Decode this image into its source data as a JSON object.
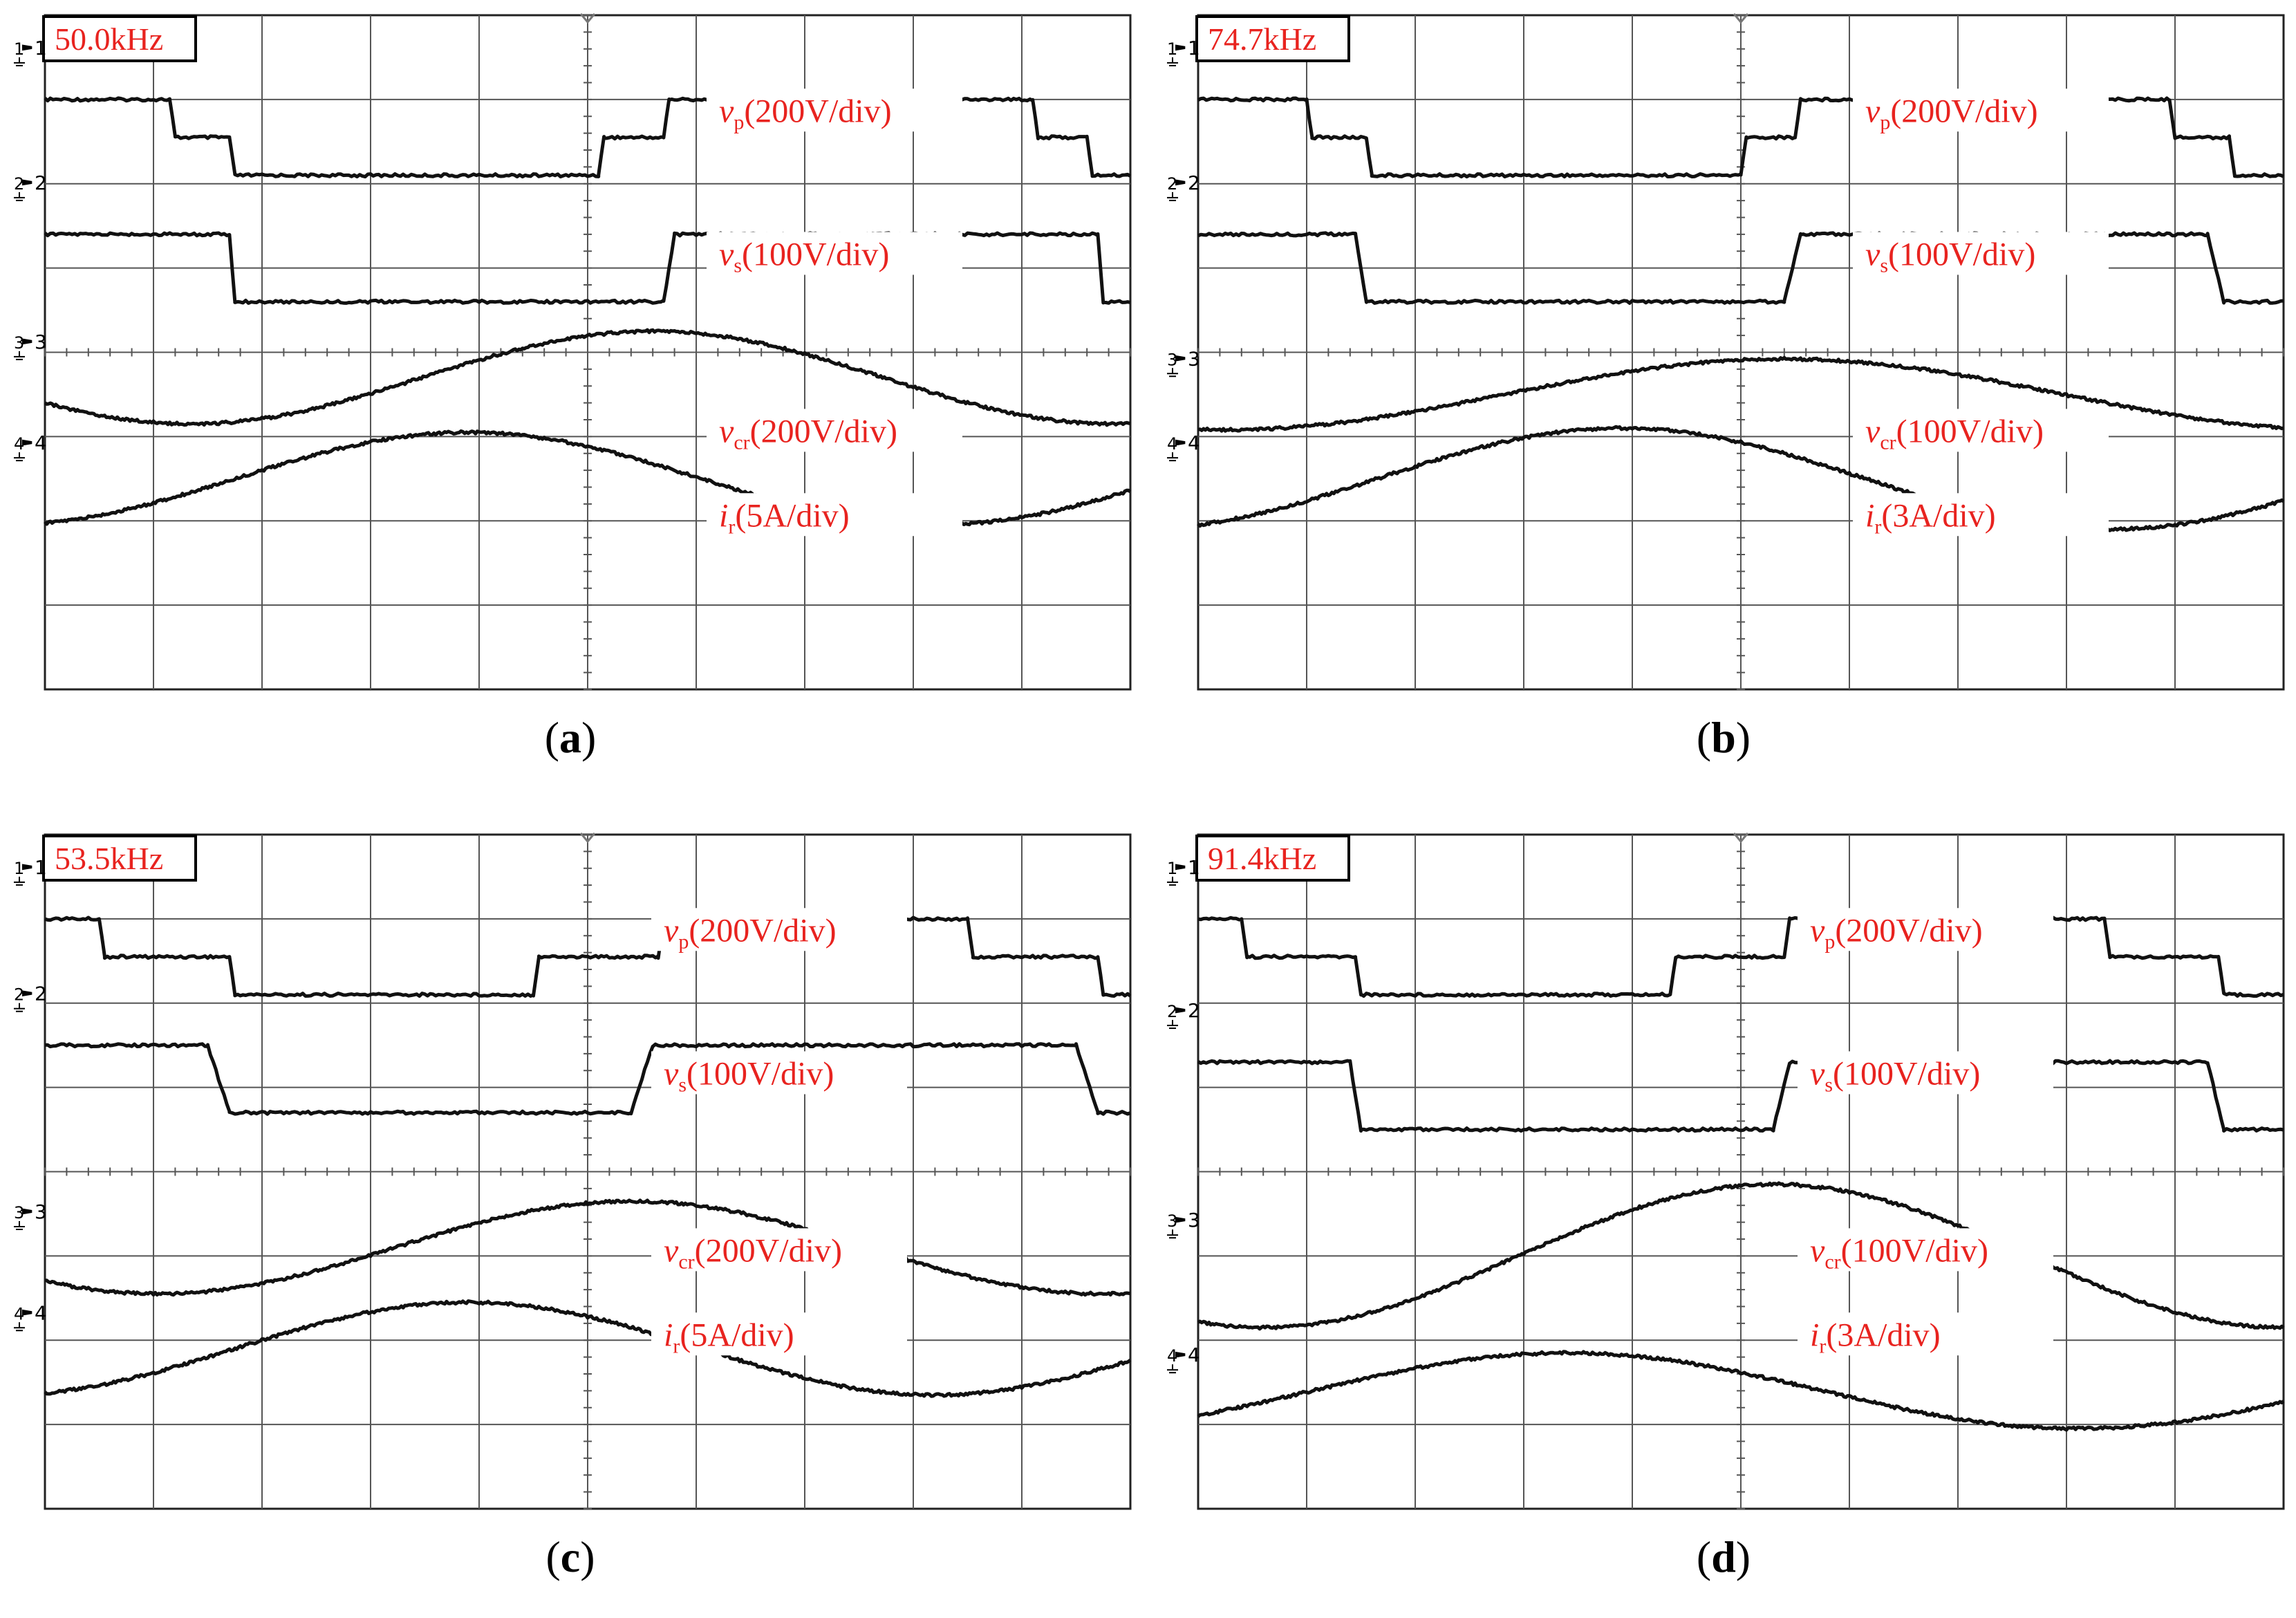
{
  "chart_data": [
    {
      "type": "line",
      "panel": "a",
      "frequency": "50.0kHz",
      "caption": {
        "open": "(",
        "letter": "a",
        "close": ")"
      },
      "grid": {
        "h_divs": 10,
        "v_divs": 8
      },
      "channels": [
        {
          "marker": "1",
          "label_var": "v",
          "label_sub": "p",
          "label_rest": "(200V/div)",
          "levels": [
            {
              "t": 0,
              "y": 1.0
            },
            {
              "t": 1.15,
              "y": 1.0
            },
            {
              "t": 1.2,
              "y": 1.45
            },
            {
              "t": 1.7,
              "y": 1.45
            },
            {
              "t": 1.75,
              "y": 1.9
            },
            {
              "t": 5.1,
              "y": 1.9
            },
            {
              "t": 5.15,
              "y": 1.45
            },
            {
              "t": 5.7,
              "y": 1.45
            },
            {
              "t": 5.75,
              "y": 1.0
            },
            {
              "t": 9.1,
              "y": 1.0
            },
            {
              "t": 9.15,
              "y": 1.45
            },
            {
              "t": 9.6,
              "y": 1.45
            },
            {
              "t": 9.65,
              "y": 1.9
            },
            {
              "t": 10,
              "y": 1.9
            }
          ]
        },
        {
          "marker": "2",
          "label_var": "v",
          "label_sub": "s",
          "label_rest": "(100V/div)",
          "levels": [
            {
              "t": 0,
              "y": 2.6
            },
            {
              "t": 1.7,
              "y": 2.6
            },
            {
              "t": 1.75,
              "y": 3.4
            },
            {
              "t": 5.7,
              "y": 3.4
            },
            {
              "t": 5.8,
              "y": 2.6
            },
            {
              "t": 9.7,
              "y": 2.6
            },
            {
              "t": 9.75,
              "y": 3.4
            },
            {
              "t": 10,
              "y": 3.4
            }
          ]
        },
        {
          "marker": "3",
          "label_var": "v",
          "label_sub": "cr",
          "label_rest": "(200V/div)",
          "sine": {
            "offset": 4.3,
            "amp": 0.55,
            "period": 8.5,
            "phase_peak": 5.6
          }
        },
        {
          "marker": "4",
          "label_var": "i",
          "label_sub": "r",
          "label_rest": "(5A/div)",
          "sine": {
            "offset": 5.5,
            "amp": 0.55,
            "period": 8.6,
            "phase_peak": 3.9
          }
        }
      ]
    },
    {
      "type": "line",
      "panel": "b",
      "frequency": "74.7kHz",
      "caption": {
        "open": "(",
        "letter": "b",
        "close": ")"
      },
      "grid": {
        "h_divs": 10,
        "v_divs": 8
      },
      "channels": [
        {
          "marker": "1",
          "label_var": "v",
          "label_sub": "p",
          "label_rest": "(200V/div)",
          "levels": [
            {
              "t": 0,
              "y": 1.0
            },
            {
              "t": 1.0,
              "y": 1.0
            },
            {
              "t": 1.05,
              "y": 1.45
            },
            {
              "t": 1.55,
              "y": 1.45
            },
            {
              "t": 1.6,
              "y": 1.9
            },
            {
              "t": 5.0,
              "y": 1.9
            },
            {
              "t": 5.05,
              "y": 1.45
            },
            {
              "t": 5.5,
              "y": 1.45
            },
            {
              "t": 5.55,
              "y": 1.0
            },
            {
              "t": 8.95,
              "y": 1.0
            },
            {
              "t": 9.0,
              "y": 1.45
            },
            {
              "t": 9.5,
              "y": 1.45
            },
            {
              "t": 9.55,
              "y": 1.9
            },
            {
              "t": 10,
              "y": 1.9
            }
          ]
        },
        {
          "marker": "2",
          "label_var": "v",
          "label_sub": "s",
          "label_rest": "(100V/div)",
          "levels": [
            {
              "t": 0,
              "y": 2.6
            },
            {
              "t": 1.45,
              "y": 2.6
            },
            {
              "t": 1.55,
              "y": 3.4
            },
            {
              "t": 5.4,
              "y": 3.4
            },
            {
              "t": 5.55,
              "y": 2.6
            },
            {
              "t": 9.3,
              "y": 2.6
            },
            {
              "t": 9.45,
              "y": 3.4
            },
            {
              "t": 10,
              "y": 3.4
            }
          ]
        },
        {
          "marker": "3",
          "label_var": "v",
          "label_sub": "cr",
          "label_rest": "(100V/div)",
          "sine": {
            "offset": 4.5,
            "amp": 0.42,
            "period": 10.3,
            "phase_peak": 5.4
          }
        },
        {
          "marker": "4",
          "label_var": "i",
          "label_sub": "r",
          "label_rest": "(3A/div)",
          "sine": {
            "offset": 5.5,
            "amp": 0.6,
            "period": 9.0,
            "phase_peak": 3.9
          }
        }
      ]
    },
    {
      "type": "line",
      "panel": "c",
      "frequency": "53.5kHz",
      "caption": {
        "open": "(",
        "letter": "c",
        "close": ")"
      },
      "grid": {
        "h_divs": 10,
        "v_divs": 8
      },
      "channels": [
        {
          "marker": "1",
          "label_var": "v",
          "label_sub": "p",
          "label_rest": "(200V/div)",
          "levels": [
            {
              "t": 0,
              "y": 1.0
            },
            {
              "t": 0.5,
              "y": 1.0
            },
            {
              "t": 0.55,
              "y": 1.45
            },
            {
              "t": 1.7,
              "y": 1.45
            },
            {
              "t": 1.75,
              "y": 1.9
            },
            {
              "t": 4.5,
              "y": 1.9
            },
            {
              "t": 4.55,
              "y": 1.45
            },
            {
              "t": 5.65,
              "y": 1.45
            },
            {
              "t": 5.7,
              "y": 1.0
            },
            {
              "t": 8.5,
              "y": 1.0
            },
            {
              "t": 8.55,
              "y": 1.45
            },
            {
              "t": 9.7,
              "y": 1.45
            },
            {
              "t": 9.75,
              "y": 1.9
            },
            {
              "t": 10,
              "y": 1.9
            }
          ]
        },
        {
          "marker": "2",
          "label_var": "v",
          "label_sub": "s",
          "label_rest": "(100V/div)",
          "levels": [
            {
              "t": 0,
              "y": 2.5
            },
            {
              "t": 1.5,
              "y": 2.5
            },
            {
              "t": 1.7,
              "y": 3.3
            },
            {
              "t": 5.4,
              "y": 3.3
            },
            {
              "t": 5.6,
              "y": 2.5
            },
            {
              "t": 9.5,
              "y": 2.5
            },
            {
              "t": 9.7,
              "y": 3.3
            },
            {
              "t": 10,
              "y": 3.3
            }
          ]
        },
        {
          "marker": "3",
          "label_var": "v",
          "label_sub": "cr",
          "label_rest": "(200V/div)",
          "sine": {
            "offset": 4.9,
            "amp": 0.55,
            "period": 8.7,
            "phase_peak": 5.4
          }
        },
        {
          "marker": "4",
          "label_var": "i",
          "label_sub": "r",
          "label_rest": "(5A/div)",
          "sine": {
            "offset": 6.1,
            "amp": 0.55,
            "period": 8.6,
            "phase_peak": 3.9
          }
        }
      ]
    },
    {
      "type": "line",
      "panel": "d",
      "frequency": "91.4kHz",
      "caption": {
        "open": "(",
        "letter": "d",
        "close": ")"
      },
      "grid": {
        "h_divs": 10,
        "v_divs": 8
      },
      "channels": [
        {
          "marker": "1",
          "label_var": "v",
          "label_sub": "p",
          "label_rest": "(200V/div)",
          "levels": [
            {
              "t": 0,
              "y": 1.0
            },
            {
              "t": 0.4,
              "y": 1.0
            },
            {
              "t": 0.45,
              "y": 1.45
            },
            {
              "t": 1.45,
              "y": 1.45
            },
            {
              "t": 1.5,
              "y": 1.9
            },
            {
              "t": 4.35,
              "y": 1.9
            },
            {
              "t": 4.4,
              "y": 1.45
            },
            {
              "t": 5.4,
              "y": 1.45
            },
            {
              "t": 5.45,
              "y": 1.0
            },
            {
              "t": 8.35,
              "y": 1.0
            },
            {
              "t": 8.4,
              "y": 1.45
            },
            {
              "t": 9.4,
              "y": 1.45
            },
            {
              "t": 9.45,
              "y": 1.9
            },
            {
              "t": 10,
              "y": 1.9
            }
          ]
        },
        {
          "marker": "2",
          "label_var": "v",
          "label_sub": "s",
          "label_rest": "(100V/div)",
          "levels": [
            {
              "t": 0,
              "y": 2.7
            },
            {
              "t": 1.4,
              "y": 2.7
            },
            {
              "t": 1.5,
              "y": 3.5
            },
            {
              "t": 5.3,
              "y": 3.5
            },
            {
              "t": 5.45,
              "y": 2.7
            },
            {
              "t": 9.3,
              "y": 2.7
            },
            {
              "t": 9.45,
              "y": 3.5
            },
            {
              "t": 10,
              "y": 3.5
            }
          ]
        },
        {
          "marker": "3",
          "label_var": "v",
          "label_sub": "cr",
          "label_rest": "(100V/div)",
          "sine": {
            "offset": 5.0,
            "amp": 0.85,
            "period": 9.4,
            "phase_peak": 5.3
          }
        },
        {
          "marker": "4",
          "label_var": "i",
          "label_sub": "r",
          "label_rest": "(3A/div)",
          "sine": {
            "offset": 6.6,
            "amp": 0.45,
            "period": 9.4,
            "phase_peak": 3.4
          }
        }
      ]
    }
  ]
}
